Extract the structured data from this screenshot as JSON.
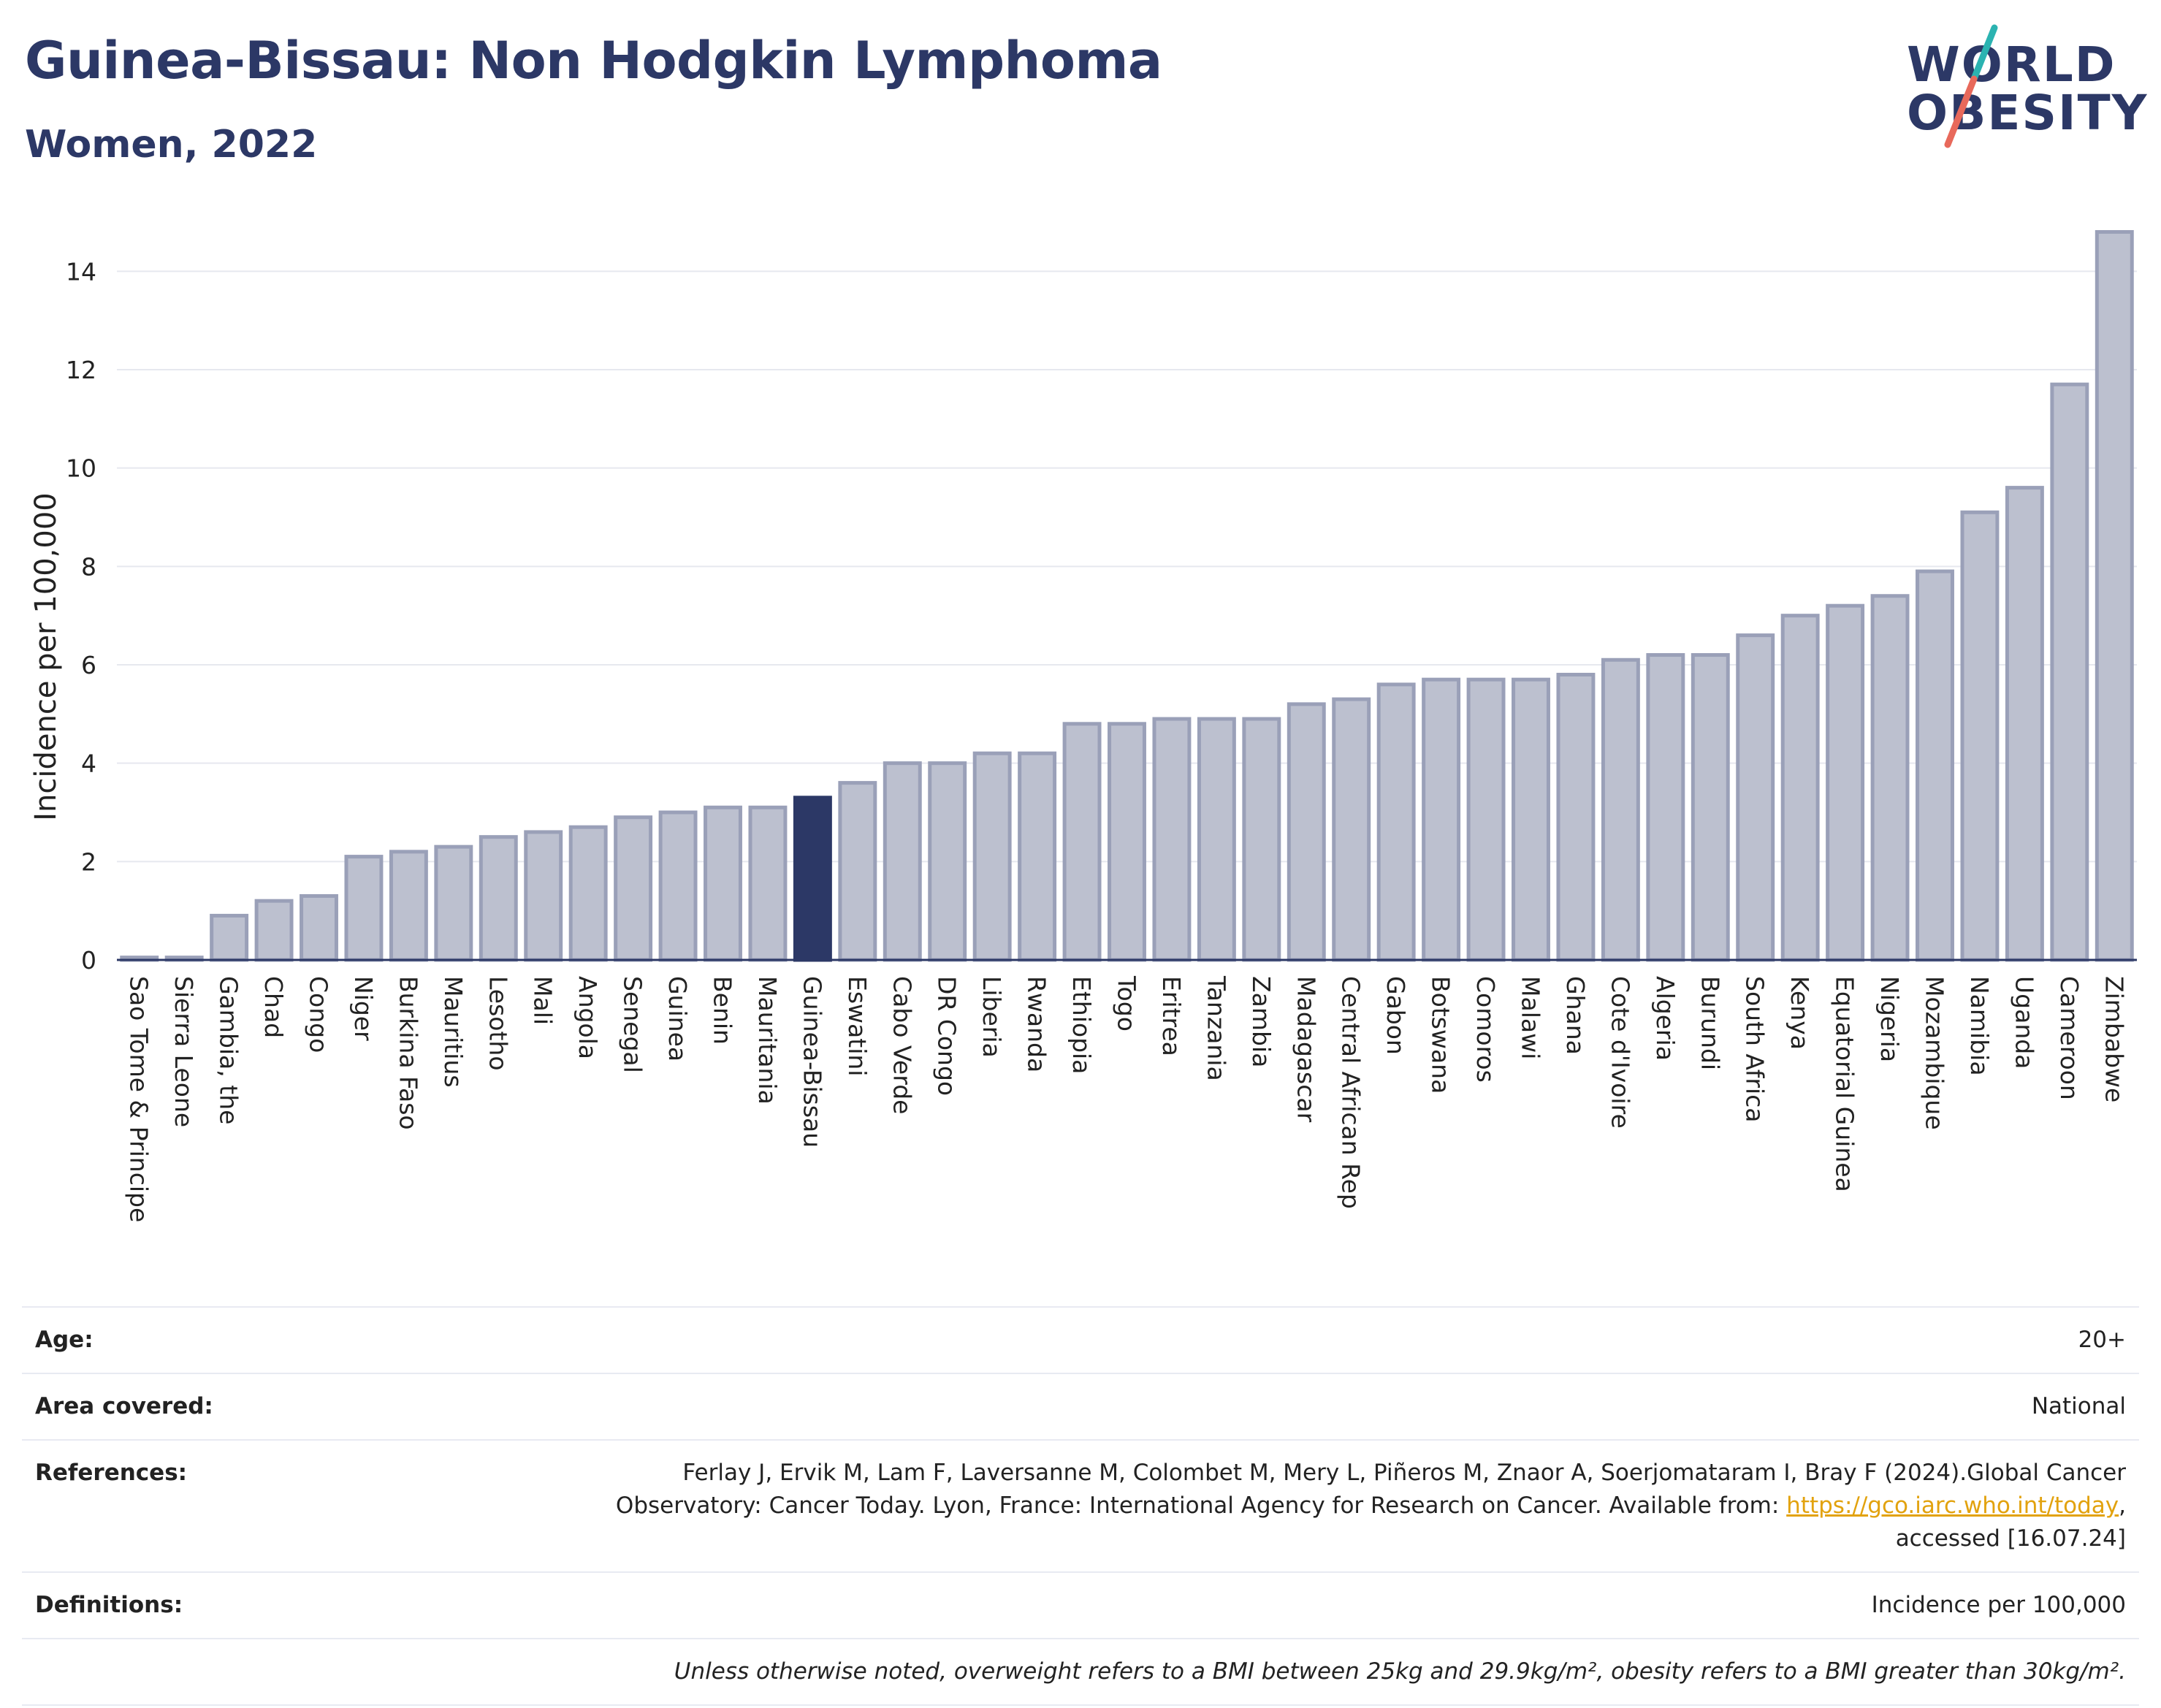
{
  "header": {
    "title": "Guinea-Bissau: Non Hodgkin Lymphoma",
    "subtitle": "Women, 2022"
  },
  "logo": {
    "line1": "WORLD",
    "line2": "OBESITY",
    "slash_colors": [
      "#2bb3b1",
      "#e8695b"
    ]
  },
  "colors": {
    "bar_fill": "#bcc0cf",
    "bar_stroke": "#9aa0b8",
    "highlight": "#2c3866",
    "grid": "#e6e8ef",
    "axis": "#2c3866"
  },
  "chart_data": {
    "type": "bar",
    "ylabel": "Incidence per 100,000",
    "xlabel": "",
    "ylim": [
      0,
      15
    ],
    "yticks": [
      0,
      2,
      4,
      6,
      8,
      10,
      12,
      14
    ],
    "grid": true,
    "highlight": "Guinea-Bissau",
    "categories": [
      "Sao Tome & Principe",
      "Sierra Leone",
      "Gambia, the",
      "Chad",
      "Congo",
      "Niger",
      "Burkina Faso",
      "Mauritius",
      "Lesotho",
      "Mali",
      "Angola",
      "Senegal",
      "Guinea",
      "Benin",
      "Mauritania",
      "Guinea-Bissau",
      "Eswatini",
      "Cabo Verde",
      "DR Congo",
      "Liberia",
      "Rwanda",
      "Ethiopia",
      "Togo",
      "Eritrea",
      "Tanzania",
      "Zambia",
      "Madagascar",
      "Central African Rep",
      "Gabon",
      "Botswana",
      "Comoros",
      "Malawi",
      "Ghana",
      "Cote d'Ivoire",
      "Algeria",
      "Burundi",
      "South Africa",
      "Kenya",
      "Equatorial Guinea",
      "Nigeria",
      "Mozambique",
      "Namibia",
      "Uganda",
      "Cameroon",
      "Zimbabwe"
    ],
    "values": [
      0.05,
      0.05,
      0.9,
      1.2,
      1.3,
      2.1,
      2.2,
      2.3,
      2.5,
      2.6,
      2.7,
      2.9,
      3.0,
      3.1,
      3.1,
      3.3,
      3.6,
      4.0,
      4.0,
      4.2,
      4.2,
      4.8,
      4.8,
      4.9,
      4.9,
      4.9,
      5.2,
      5.3,
      5.6,
      5.7,
      5.7,
      5.7,
      5.8,
      6.1,
      6.2,
      6.2,
      6.6,
      7.0,
      7.2,
      7.4,
      7.9,
      9.1,
      9.6,
      11.7,
      14.8
    ]
  },
  "info": {
    "age": {
      "label": "Age:",
      "value": "20+"
    },
    "area": {
      "label": "Area covered:",
      "value": "National"
    },
    "references": {
      "label": "References:",
      "line1": "Ferlay J, Ervik M, Lam F, Laversanne M, Colombet M, Mery L, Piñeros M, Znaor A, Soerjomataram I, Bray F (2024).Global Cancer",
      "line2_pre": "Observatory: Cancer Today. Lyon, France: International Agency for Research on Cancer. Available from: ",
      "link": "https://gco.iarc.who.int/today",
      "line2_post": ",",
      "line3": "accessed [16.07.24]"
    },
    "definitions": {
      "label": "Definitions:",
      "value": "Incidence per 100,000"
    },
    "note": "Unless otherwise noted, overweight refers to a BMI between 25kg and 29.9kg/m², obesity refers to a BMI greater than 30kg/m²."
  }
}
